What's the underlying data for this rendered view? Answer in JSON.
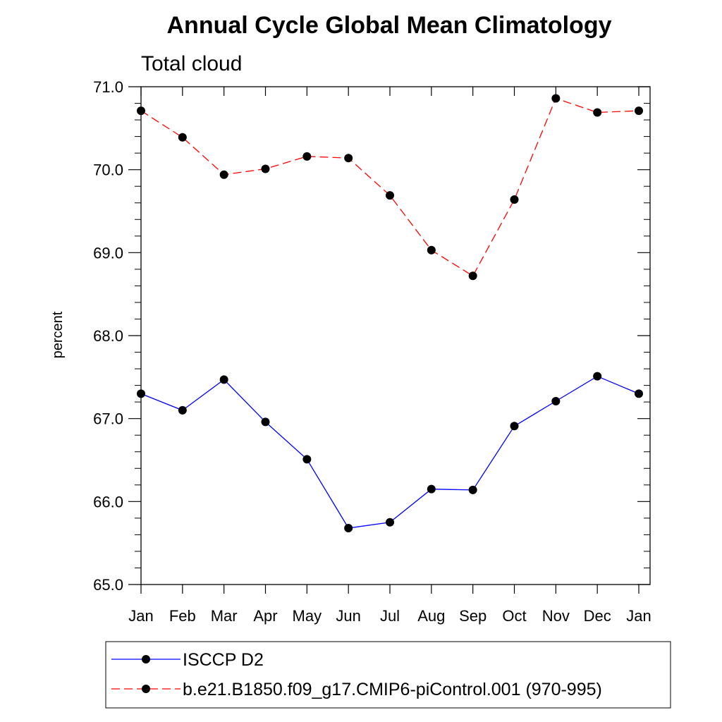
{
  "chart_data": {
    "type": "line",
    "title": "Annual Cycle Global Mean Climatology",
    "subtitle": "Total cloud",
    "xlabel": "",
    "ylabel": "percent",
    "categories": [
      "Jan",
      "Feb",
      "Mar",
      "Apr",
      "May",
      "Jun",
      "Jul",
      "Aug",
      "Sep",
      "Oct",
      "Nov",
      "Dec",
      "Jan"
    ],
    "ylim": [
      65.0,
      71.0
    ],
    "yticks": [
      "65.0",
      "66.0",
      "67.0",
      "68.0",
      "69.0",
      "70.0",
      "71.0"
    ],
    "yminor_step": 0.2,
    "grid": false,
    "legend_position": "bottom",
    "series": [
      {
        "name": "ISCCP D2",
        "values": [
          67.3,
          67.1,
          67.47,
          66.96,
          66.51,
          65.68,
          65.75,
          66.15,
          66.14,
          66.91,
          67.21,
          67.51,
          67.3
        ],
        "color": "#0000ff",
        "dash": "solid",
        "marker": "filled-circle"
      },
      {
        "name": "b.e21.B1850.f09_g17.CMIP6-piControl.001 (970-995)",
        "values": [
          70.71,
          70.39,
          69.94,
          70.01,
          70.16,
          70.14,
          69.69,
          69.03,
          68.72,
          69.64,
          70.86,
          70.69,
          70.71
        ],
        "color": "#ff0000",
        "dash": "dashed",
        "marker": "filled-circle"
      }
    ]
  }
}
